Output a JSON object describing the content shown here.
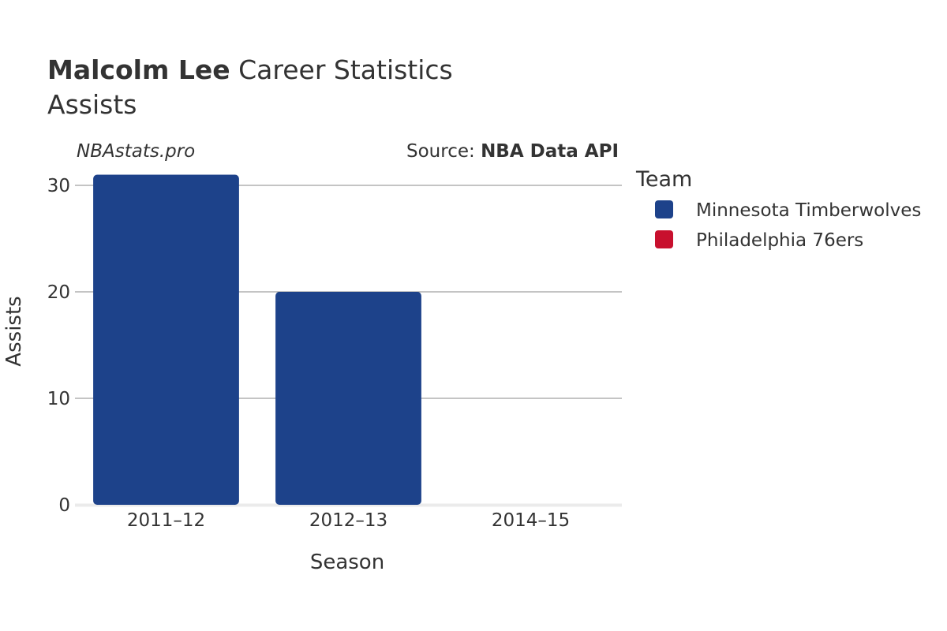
{
  "colors": {
    "minnesota": "#1d428a",
    "philadelphia": "#c8102e",
    "grid": "#888888",
    "text": "#333333"
  },
  "chart_data": {
    "type": "bar",
    "title_bold": "Malcolm Lee",
    "title_rest": " Career Statistics",
    "subtitle": "Assists",
    "watermark": "NBAstats.pro",
    "source_prefix": "Source: ",
    "source_name": "NBA Data API",
    "xlabel": "Season",
    "ylabel": "Assists",
    "ylim": [
      0,
      30
    ],
    "yticks": [
      0,
      10,
      20,
      30
    ],
    "grid": true,
    "legend_title": "Team",
    "legend_placement": "right",
    "categories": [
      "2011–12",
      "2012–13",
      "2014–15"
    ],
    "series": [
      {
        "name": "Minnesota Timberwolves",
        "color": "#1d428a",
        "values": [
          31,
          20,
          0
        ]
      },
      {
        "name": "Philadelphia 76ers",
        "color": "#c8102e",
        "values": [
          0,
          0,
          0
        ]
      }
    ]
  }
}
